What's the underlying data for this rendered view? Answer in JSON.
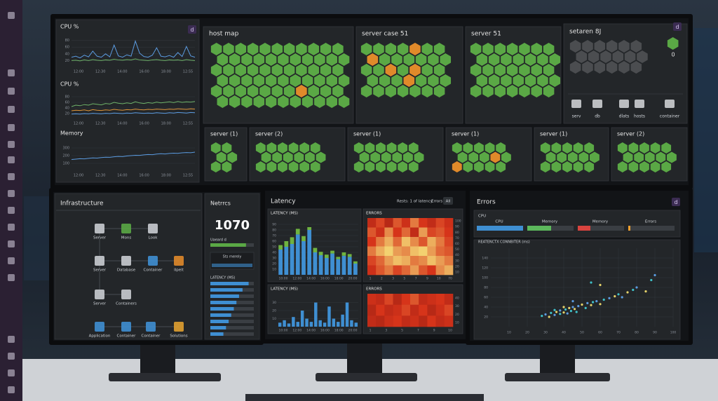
{
  "top_monitor": {
    "metrics_panel": {
      "badge": "d",
      "charts": [
        {
          "title": "CPU %",
          "ylim": [
            0,
            100
          ],
          "yticks": [
            20,
            40,
            60,
            80
          ],
          "xticks": [
            "12:00",
            "12:30",
            "14:00",
            "16:00",
            "18:00",
            "12:55"
          ],
          "series": [
            {
              "color": "#5b9be0",
              "values": [
                30,
                33,
                28,
                36,
                31,
                48,
                33,
                30,
                40,
                31,
                66,
                34,
                30,
                37,
                33,
                78,
                42,
                32,
                30,
                36,
                58,
                33,
                31,
                35,
                30,
                44,
                32,
                62,
                34,
                30
              ]
            },
            {
              "color": "#6fb36a",
              "values": [
                20,
                21,
                19,
                22,
                20,
                23,
                21,
                20,
                22,
                21,
                24,
                22,
                21,
                23,
                22,
                25,
                22,
                21,
                20,
                22,
                23,
                21,
                20,
                22,
                21,
                22,
                20,
                23,
                21,
                20
              ]
            }
          ]
        },
        {
          "title": "CPU %",
          "ylim": [
            0,
            100
          ],
          "yticks": [
            20,
            40,
            60,
            80
          ],
          "xticks": [
            "12:00",
            "12:30",
            "14:00",
            "16:00",
            "18:00",
            "12:55"
          ],
          "series": [
            {
              "color": "#6fb36a",
              "values": [
                45,
                50,
                48,
                52,
                50,
                55,
                53,
                51,
                56,
                54,
                60,
                57,
                55,
                58,
                56,
                62,
                58,
                56,
                59,
                57,
                61,
                58,
                60,
                62,
                59,
                63,
                60,
                62,
                61,
                63
              ]
            },
            {
              "color": "#e0963a",
              "values": [
                30,
                32,
                31,
                33,
                30,
                34,
                32,
                31,
                33,
                32,
                35,
                33,
                32,
                34,
                33,
                36,
                34,
                33,
                35,
                34,
                36,
                35,
                34,
                36,
                35,
                37,
                36,
                35,
                37,
                36
              ]
            },
            {
              "color": "#5b9be0",
              "values": [
                18,
                19,
                18,
                20,
                19,
                21,
                20,
                19,
                21,
                20,
                22,
                21,
                20,
                22,
                21,
                23,
                22,
                21,
                22,
                21,
                23,
                22,
                21,
                23,
                22,
                24,
                23,
                22,
                24,
                23
              ]
            }
          ]
        },
        {
          "title": "Memory",
          "ylim": [
            0,
            400
          ],
          "yticks": [
            100,
            200,
            300
          ],
          "xticks": [
            "12:00",
            "12:30",
            "14:00",
            "16:00",
            "18:00",
            "12:55"
          ],
          "series": [
            {
              "color": "#5b9be0",
              "values": [
                150,
                155,
                160,
                158,
                165,
                170,
                168,
                175,
                180,
                178,
                185,
                190,
                188,
                195,
                200,
                205,
                203,
                210,
                215,
                212,
                220,
                225,
                222,
                228,
                232,
                230,
                236,
                240,
                238,
                245
              ]
            }
          ]
        }
      ]
    },
    "host_map": {
      "title": "host map"
    },
    "server_case": {
      "title": "server case 51"
    },
    "server_51": {
      "title": "server 51"
    },
    "setaren": {
      "title": "setaren 8J",
      "badge": "d",
      "count": 0,
      "icons": [
        "serv",
        "db",
        "dlats",
        "hosts",
        "container"
      ]
    },
    "small_maps": [
      "server (1)",
      "server (2)",
      "server (1)",
      "server (1)",
      "server (1)",
      "server (2)"
    ]
  },
  "left_monitor": {
    "infrastructure": {
      "title": "Infrastructure",
      "nodes": [
        "Server",
        "Mons",
        "Look",
        "Server",
        "Database",
        "Container",
        "Ilpelt",
        "Server",
        "Containers",
        "Application",
        "Container",
        "Container",
        "Solutions"
      ]
    },
    "metrics": {
      "title": "Netrrcs",
      "value": 1070,
      "bar_label": "Uaeard d",
      "bar_value": 82,
      "sub_label": "Sts merely",
      "latency_label": "LATENCY (MS)",
      "latency_bars": [
        88,
        74,
        66,
        60,
        54,
        48,
        42,
        36,
        30
      ]
    }
  },
  "middle_monitor": {
    "title": "Latency",
    "filter": "Rests: 1 of latency",
    "errors_tab": "Errors",
    "all_button": "All",
    "latency_1": {
      "title": "LATENCY (MS)",
      "ylim": [
        0,
        100
      ],
      "yticks": [
        10,
        20,
        30,
        40,
        50,
        60,
        70,
        80,
        90
      ],
      "xticks": [
        "10:00",
        "12:00",
        "14:00",
        "16:00",
        "18:00",
        "20:00"
      ],
      "series": [
        {
          "color": "#3f8fd2",
          "values": [
            45,
            50,
            55,
            72,
            60,
            80,
            40,
            35,
            30,
            38,
            28,
            34,
            32,
            20
          ]
        },
        {
          "color": "#6fb340",
          "values": [
            8,
            10,
            12,
            10,
            9,
            5,
            8,
            6,
            6,
            5,
            4,
            6,
            5,
            4
          ]
        }
      ]
    },
    "errors_1": {
      "title": "ERRORS",
      "yticks": [
        10,
        20,
        30,
        40,
        50,
        60,
        70,
        80,
        90,
        100
      ],
      "xticks": [
        1,
        2,
        3,
        5,
        7,
        9,
        10,
        70
      ],
      "rows": [
        [
          40,
          55,
          35,
          60,
          45,
          70,
          50,
          40,
          55,
          45
        ],
        [
          60,
          45,
          75,
          50,
          65,
          40,
          80,
          55,
          60,
          50
        ],
        [
          50,
          70,
          85,
          65,
          90,
          75,
          60,
          85,
          70,
          55
        ],
        [
          70,
          85,
          95,
          80,
          75,
          90,
          95,
          80,
          65,
          60
        ],
        [
          55,
          65,
          80,
          90,
          85,
          70,
          75,
          90,
          80,
          70
        ],
        [
          45,
          60,
          70,
          55,
          65,
          80,
          60,
          50,
          75,
          85
        ]
      ]
    },
    "latency_2": {
      "title": "LATENCY (MS)",
      "ylim": [
        0,
        40
      ],
      "yticks": [
        10,
        20,
        30
      ],
      "xticks": [
        "10:00",
        "12:00",
        "14:00",
        "16:00",
        "18:00",
        "20:00"
      ],
      "series": [
        {
          "color": "#3f8fd2",
          "values": [
            5,
            8,
            4,
            12,
            6,
            20,
            10,
            6,
            30,
            8,
            5,
            25,
            10,
            6,
            15,
            30,
            8,
            5
          ]
        }
      ]
    },
    "errors_2": {
      "title": "ERRORS",
      "yticks": [
        10,
        20,
        30,
        40
      ],
      "xticks": [
        1,
        3,
        5,
        7,
        9,
        10
      ],
      "rows": [
        [
          45,
          40,
          55,
          35,
          50,
          60,
          40,
          45,
          50,
          40
        ],
        [
          35,
          50,
          40,
          45,
          55,
          40,
          50,
          35,
          45,
          55
        ],
        [
          40,
          35,
          45,
          50,
          40,
          45,
          35,
          50,
          40,
          45
        ]
      ]
    }
  },
  "right_monitor": {
    "title": "Errors",
    "badge": "d",
    "legend_title": "CPU",
    "legend": [
      {
        "name": "CPU",
        "color": "#3f8fd2"
      },
      {
        "name": "Memory",
        "color": "#5cb85c"
      },
      {
        "name": "Memory",
        "color": "#d9443f"
      },
      {
        "name": "Errors",
        "color": "#f0a030"
      }
    ],
    "scatter": {
      "title": "REATENCTX CONNBITER (ms)",
      "xlim": [
        0,
        100
      ],
      "ylim": [
        0,
        160
      ],
      "xticks": [
        10,
        20,
        30,
        40,
        50,
        60,
        70,
        80,
        90,
        100
      ],
      "yticks": [
        20,
        40,
        60,
        80,
        100,
        120,
        140
      ],
      "x": [
        28,
        30,
        32,
        33,
        35,
        36,
        38,
        38,
        40,
        41,
        42,
        43,
        44,
        45,
        46,
        47,
        48,
        50,
        52,
        53,
        55,
        56,
        58,
        60,
        62,
        65,
        68,
        70,
        72,
        75,
        78,
        80,
        85,
        88,
        90,
        60,
        55,
        45,
        40,
        35
      ],
      "y": [
        22,
        25,
        20,
        28,
        24,
        30,
        26,
        33,
        29,
        35,
        27,
        38,
        32,
        40,
        36,
        30,
        42,
        45,
        38,
        48,
        44,
        50,
        52,
        46,
        55,
        58,
        62,
        66,
        60,
        70,
        75,
        80,
        72,
        95,
        105,
        85,
        90,
        52,
        40,
        34
      ]
    }
  }
}
